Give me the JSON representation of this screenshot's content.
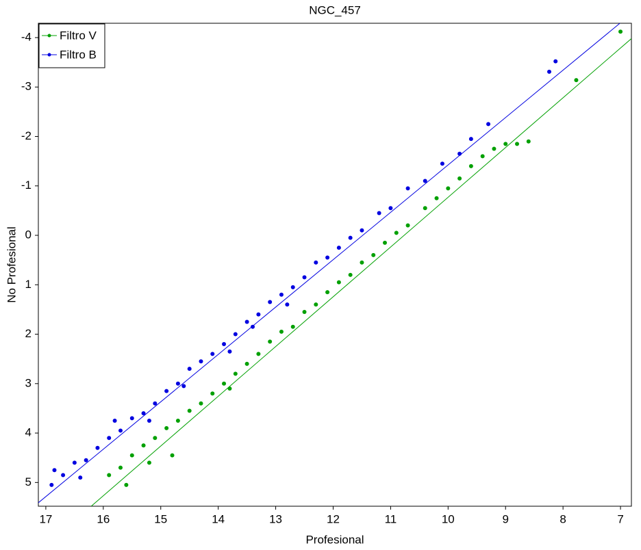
{
  "chart_data": {
    "type": "scatter",
    "title": "NGC_457",
    "x_label": "Profesional",
    "y_label": "No Profesional",
    "xlim": [
      17.13,
      6.81
    ],
    "ylim": [
      5.48,
      -4.29
    ],
    "xticks": [
      17,
      16,
      15,
      14,
      13,
      12,
      11,
      10,
      9,
      8,
      7
    ],
    "yticks": [
      -4,
      -3,
      -2,
      -1,
      0,
      1,
      2,
      3,
      4,
      5
    ],
    "grid": false,
    "legend": "upper-left",
    "series": [
      {
        "name": "Filtro V",
        "color": "#00a000",
        "x": [
          15.9,
          15.7,
          15.5,
          15.3,
          15.1,
          14.9,
          14.7,
          14.5,
          14.3,
          14.1,
          13.9,
          13.7,
          13.5,
          13.3,
          13.1,
          12.9,
          12.7,
          12.5,
          12.3,
          12.1,
          11.9,
          11.7,
          11.5,
          11.3,
          11.1,
          10.9,
          10.7,
          10.4,
          10.2,
          10.0,
          9.8,
          9.6,
          9.4,
          9.2,
          9.0,
          8.8,
          8.6,
          7.77,
          7.0,
          15.6,
          15.2,
          14.8,
          13.8
        ],
        "y": [
          4.85,
          4.7,
          4.45,
          4.25,
          4.1,
          3.9,
          3.75,
          3.55,
          3.4,
          3.2,
          3.0,
          2.8,
          2.6,
          2.4,
          2.15,
          1.95,
          1.85,
          1.55,
          1.4,
          1.15,
          0.95,
          0.8,
          0.55,
          0.4,
          0.15,
          -0.05,
          -0.2,
          -0.55,
          -0.75,
          -0.95,
          -1.15,
          -1.4,
          -1.6,
          -1.75,
          -1.85,
          -1.85,
          -1.9,
          -3.14,
          -4.12,
          5.05,
          4.6,
          4.45,
          3.1
        ],
        "fit": {
          "x": [
            16.21,
            6.81
          ],
          "y": [
            5.48,
            -3.98
          ]
        }
      },
      {
        "name": "Filtro B",
        "color": "#0000e0",
        "x": [
          16.9,
          16.7,
          16.5,
          16.3,
          16.1,
          15.9,
          15.7,
          15.5,
          15.3,
          15.1,
          14.9,
          14.7,
          14.5,
          14.3,
          14.1,
          13.9,
          13.7,
          13.5,
          13.3,
          13.1,
          12.9,
          12.7,
          12.5,
          12.3,
          12.1,
          11.9,
          11.7,
          11.5,
          11.2,
          11.0,
          10.7,
          10.4,
          10.1,
          9.8,
          9.6,
          9.3,
          8.24,
          8.13,
          16.85,
          16.4,
          15.8,
          15.2,
          14.6,
          13.8,
          13.4,
          12.8
        ],
        "y": [
          5.05,
          4.85,
          4.6,
          4.55,
          4.3,
          4.1,
          3.95,
          3.7,
          3.6,
          3.4,
          3.15,
          3.0,
          2.7,
          2.55,
          2.4,
          2.2,
          2.0,
          1.75,
          1.6,
          1.35,
          1.2,
          1.05,
          0.85,
          0.55,
          0.45,
          0.25,
          0.05,
          -0.1,
          -0.45,
          -0.55,
          -0.95,
          -1.1,
          -1.45,
          -1.65,
          -1.95,
          -2.25,
          -3.31,
          -3.52,
          4.75,
          4.9,
          3.75,
          3.75,
          3.05,
          2.35,
          1.85,
          1.4
        ],
        "fit": {
          "x": [
            17.13,
            7.01
          ],
          "y": [
            5.41,
            -4.29
          ]
        }
      }
    ]
  }
}
